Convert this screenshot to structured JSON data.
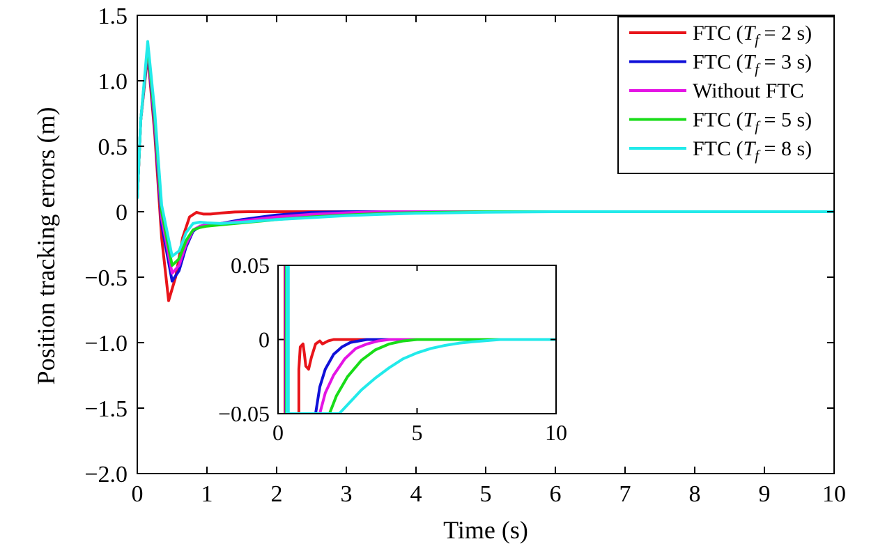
{
  "chart_data": {
    "type": "line",
    "xlabel": "Time (s)",
    "ylabel": "Position tracking errors (m)",
    "xlim": [
      0,
      10
    ],
    "ylim": [
      -2.0,
      1.5
    ],
    "x_ticks": [
      "0",
      "1",
      "2",
      "3",
      "4",
      "5",
      "6",
      "7",
      "8",
      "9",
      "10"
    ],
    "y_ticks": [
      "1.5",
      "1.0",
      "0.5",
      "0",
      "−0.5",
      "−1.0",
      "−1.5",
      "−2.0"
    ],
    "legend_position": "top-right",
    "series": [
      {
        "name": "FTC (T_f = 2 s)",
        "legend": {
          "prefix": "FTC (",
          "var": "T",
          "sub": "f",
          "suffix": " = 2 s)"
        },
        "color": "#e8141a",
        "x": [
          0,
          0.05,
          0.15,
          0.25,
          0.35,
          0.45,
          0.55,
          0.65,
          0.75,
          0.85,
          0.95,
          1.05,
          1.2,
          1.4,
          1.6,
          2.0,
          3.0,
          10
        ],
        "y": [
          0.1,
          0.7,
          1.2,
          0.6,
          -0.2,
          -0.68,
          -0.5,
          -0.2,
          -0.04,
          -0.005,
          -0.018,
          -0.018,
          -0.01,
          -0.002,
          0,
          0,
          0,
          0
        ]
      },
      {
        "name": "FTC (T_f = 3 s)",
        "legend": {
          "prefix": "FTC (",
          "var": "T",
          "sub": "f",
          "suffix": " = 3 s)"
        },
        "color": "#1010d8",
        "x": [
          0,
          0.05,
          0.15,
          0.25,
          0.35,
          0.5,
          0.6,
          0.7,
          0.8,
          0.9,
          1.0,
          1.2,
          1.5,
          2.0,
          2.5,
          3.0,
          10
        ],
        "y": [
          0.1,
          0.7,
          1.23,
          0.65,
          -0.1,
          -0.53,
          -0.45,
          -0.27,
          -0.15,
          -0.11,
          -0.1,
          -0.09,
          -0.06,
          -0.025,
          -0.005,
          0,
          0
        ]
      },
      {
        "name": "Without FTC",
        "legend": {
          "prefix": "Without FTC",
          "var": "",
          "sub": "",
          "suffix": ""
        },
        "color": "#e414e4",
        "x": [
          0,
          0.05,
          0.15,
          0.25,
          0.35,
          0.5,
          0.6,
          0.7,
          0.8,
          0.9,
          1.0,
          1.2,
          1.5,
          2.0,
          2.5,
          3.0,
          3.5,
          10
        ],
        "y": [
          0.1,
          0.7,
          1.25,
          0.68,
          -0.05,
          -0.47,
          -0.41,
          -0.25,
          -0.14,
          -0.11,
          -0.1,
          -0.09,
          -0.07,
          -0.04,
          -0.02,
          -0.008,
          0,
          0
        ]
      },
      {
        "name": "FTC (T_f = 5 s)",
        "legend": {
          "prefix": "FTC (",
          "var": "T",
          "sub": "f",
          "suffix": " = 5 s)"
        },
        "color": "#18dc18",
        "x": [
          0,
          0.05,
          0.15,
          0.25,
          0.35,
          0.5,
          0.6,
          0.7,
          0.8,
          0.9,
          1.0,
          1.2,
          1.5,
          2.0,
          2.5,
          3.0,
          3.5,
          4.0,
          5.0,
          10
        ],
        "y": [
          0.1,
          0.7,
          1.27,
          0.72,
          0.0,
          -0.41,
          -0.36,
          -0.22,
          -0.14,
          -0.12,
          -0.11,
          -0.1,
          -0.085,
          -0.06,
          -0.04,
          -0.025,
          -0.014,
          -0.007,
          0,
          0
        ]
      },
      {
        "name": "FTC (T_f = 8 s)",
        "legend": {
          "prefix": "FTC (",
          "var": "T",
          "sub": "f",
          "suffix": " = 8 s)"
        },
        "color": "#22eaea",
        "x": [
          0,
          0.05,
          0.15,
          0.25,
          0.35,
          0.5,
          0.6,
          0.7,
          0.8,
          0.9,
          1.0,
          1.2,
          1.5,
          2.0,
          2.5,
          3.0,
          3.5,
          4.0,
          5.0,
          6.0,
          10
        ],
        "y": [
          0.1,
          0.7,
          1.3,
          0.77,
          0.05,
          -0.34,
          -0.3,
          -0.16,
          -0.09,
          -0.08,
          -0.085,
          -0.09,
          -0.08,
          -0.06,
          -0.045,
          -0.03,
          -0.02,
          -0.012,
          -0.004,
          0,
          0
        ]
      }
    ],
    "inset": {
      "xlim": [
        0,
        10
      ],
      "ylim": [
        -0.05,
        0.05
      ],
      "x_ticks": [
        "0",
        "5",
        "10"
      ],
      "y_ticks": [
        "0.05",
        "0",
        "−0.05"
      ],
      "series": [
        {
          "x": [
            0.25,
            0.25,
            0.3,
            0.3,
            0.75,
            0.75,
            0.8,
            0.9,
            0.95,
            1.0,
            1.1,
            1.2,
            1.35,
            1.5,
            1.6,
            1.8,
            2.0,
            2.5,
            10
          ],
          "y": [
            -0.05,
            0.05,
            0.05,
            -0.05,
            -0.05,
            -0.02,
            -0.005,
            -0.003,
            -0.01,
            -0.018,
            -0.02,
            -0.012,
            -0.003,
            -0.001,
            -0.003,
            -0.001,
            0,
            0,
            0
          ]
        },
        {
          "x": [
            0.28,
            0.28,
            0.33,
            0.33,
            1.35,
            1.5,
            1.7,
            2.0,
            2.3,
            2.6,
            2.9,
            3.2,
            3.5,
            10
          ],
          "y": [
            -0.05,
            0.05,
            0.05,
            -0.05,
            -0.05,
            -0.032,
            -0.02,
            -0.01,
            -0.005,
            -0.002,
            -0.001,
            0,
            0,
            0
          ]
        },
        {
          "x": [
            0.29,
            0.29,
            0.34,
            0.34,
            1.5,
            1.7,
            2.0,
            2.4,
            2.8,
            3.2,
            3.6,
            4.0,
            10
          ],
          "y": [
            -0.05,
            0.05,
            0.05,
            -0.05,
            -0.05,
            -0.036,
            -0.024,
            -0.013,
            -0.006,
            -0.003,
            -0.001,
            0,
            0
          ]
        },
        {
          "x": [
            0.3,
            0.3,
            0.35,
            0.35,
            1.85,
            2.1,
            2.5,
            3.0,
            3.5,
            4.0,
            4.5,
            5.0,
            5.5,
            10
          ],
          "y": [
            -0.05,
            0.05,
            0.05,
            -0.05,
            -0.05,
            -0.038,
            -0.025,
            -0.014,
            -0.007,
            -0.003,
            -0.001,
            0,
            0,
            0
          ]
        },
        {
          "x": [
            0.32,
            0.32,
            0.37,
            0.37,
            2.2,
            2.6,
            3.0,
            3.5,
            4.0,
            4.5,
            5.0,
            5.5,
            6.0,
            6.5,
            7.0,
            8.0,
            10
          ],
          "y": [
            -0.05,
            0.05,
            0.05,
            -0.05,
            -0.05,
            -0.042,
            -0.034,
            -0.026,
            -0.019,
            -0.013,
            -0.009,
            -0.006,
            -0.004,
            -0.0025,
            -0.0015,
            0,
            0
          ]
        }
      ]
    }
  }
}
